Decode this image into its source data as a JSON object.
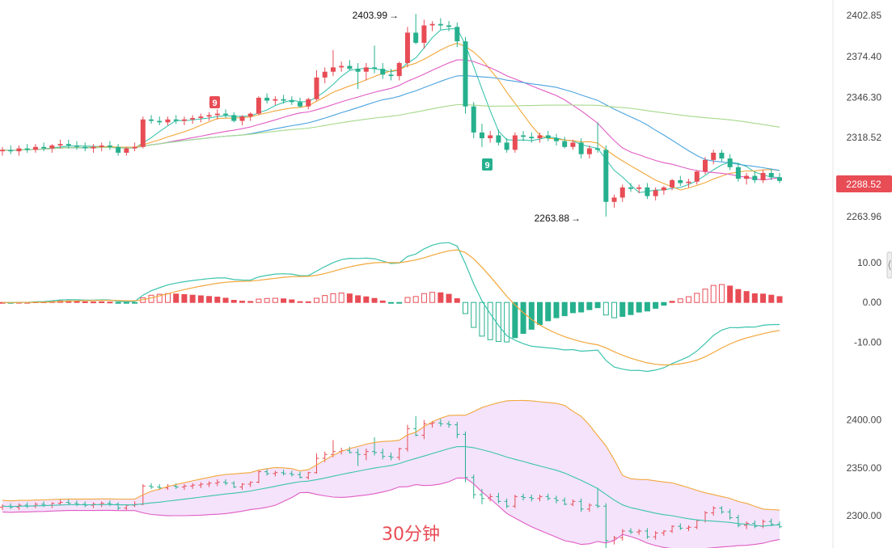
{
  "chart_data": [
    {
      "type": "candlestick",
      "panel": "price",
      "yticks": [
        "2402.85",
        "2374.40",
        "2346.30",
        "2318.52",
        "2263.96"
      ],
      "ytick_values": [
        2402.85,
        2374.4,
        2346.3,
        2318.52,
        2263.96
      ],
      "ylim": [
        2256,
        2408
      ],
      "current_price": "2288.52",
      "high_label": "2403.99",
      "low_label": "2263.88",
      "signal_badges": [
        "9",
        "9"
      ],
      "candles_ohlc": [
        [
          2309,
          2312,
          2306,
          2310
        ],
        [
          2310,
          2313,
          2307,
          2309
        ],
        [
          2309,
          2313,
          2306,
          2311
        ],
        [
          2311,
          2314,
          2308,
          2310
        ],
        [
          2310,
          2314,
          2308,
          2312
        ],
        [
          2312,
          2315,
          2309,
          2311
        ],
        [
          2311,
          2314,
          2308,
          2313
        ],
        [
          2313,
          2317,
          2311,
          2314
        ],
        [
          2314,
          2317,
          2311,
          2313
        ],
        [
          2313,
          2316,
          2310,
          2312
        ],
        [
          2312,
          2315,
          2309,
          2311
        ],
        [
          2311,
          2314,
          2308,
          2312
        ],
        [
          2312,
          2315,
          2309,
          2313
        ],
        [
          2313,
          2316,
          2310,
          2312
        ],
        [
          2312,
          2314,
          2306,
          2308
        ],
        [
          2308,
          2312,
          2306,
          2311
        ],
        [
          2311,
          2315,
          2309,
          2312
        ],
        [
          2312,
          2333,
          2311,
          2331
        ],
        [
          2331,
          2334,
          2328,
          2330
        ],
        [
          2330,
          2333,
          2327,
          2329
        ],
        [
          2329,
          2333,
          2327,
          2331
        ],
        [
          2331,
          2334,
          2328,
          2330
        ],
        [
          2330,
          2333,
          2327,
          2331
        ],
        [
          2331,
          2334,
          2328,
          2332
        ],
        [
          2332,
          2335,
          2329,
          2333
        ],
        [
          2333,
          2336,
          2330,
          2334
        ],
        [
          2334,
          2338,
          2331,
          2335
        ],
        [
          2335,
          2338,
          2332,
          2334
        ],
        [
          2334,
          2336,
          2329,
          2330
        ],
        [
          2330,
          2334,
          2327,
          2333
        ],
        [
          2333,
          2336,
          2330,
          2335
        ],
        [
          2335,
          2347,
          2334,
          2346
        ],
        [
          2346,
          2349,
          2342,
          2344
        ],
        [
          2344,
          2347,
          2341,
          2345
        ],
        [
          2345,
          2348,
          2342,
          2344
        ],
        [
          2344,
          2347,
          2341,
          2343
        ],
        [
          2343,
          2346,
          2339,
          2340
        ],
        [
          2340,
          2346,
          2338,
          2345
        ],
        [
          2345,
          2365,
          2344,
          2360
        ],
        [
          2360,
          2367,
          2356,
          2364
        ],
        [
          2364,
          2379,
          2361,
          2367
        ],
        [
          2367,
          2371,
          2364,
          2368
        ],
        [
          2368,
          2372,
          2365,
          2366
        ],
        [
          2366,
          2370,
          2352,
          2364
        ],
        [
          2364,
          2370,
          2358,
          2367
        ],
        [
          2367,
          2382,
          2363,
          2366
        ],
        [
          2366,
          2370,
          2359,
          2362
        ],
        [
          2362,
          2366,
          2358,
          2361
        ],
        [
          2361,
          2371,
          2358,
          2370
        ],
        [
          2370,
          2395,
          2367,
          2391
        ],
        [
          2391,
          2403.99,
          2383,
          2384
        ],
        [
          2384,
          2400,
          2380,
          2396
        ],
        [
          2396,
          2399,
          2392,
          2397
        ],
        [
          2397,
          2401,
          2393,
          2396
        ],
        [
          2396,
          2399,
          2392,
          2395
        ],
        [
          2395,
          2398,
          2381,
          2385
        ],
        [
          2385,
          2388,
          2335,
          2340
        ],
        [
          2340,
          2343,
          2318,
          2322
        ],
        [
          2322,
          2328,
          2312,
          2318
        ],
        [
          2318,
          2323,
          2315,
          2320
        ],
        [
          2320,
          2324,
          2313,
          2315
        ],
        [
          2315,
          2318,
          2308,
          2310
        ],
        [
          2310,
          2322,
          2308,
          2320
        ],
        [
          2320,
          2323,
          2316,
          2319
        ],
        [
          2319,
          2322,
          2315,
          2318
        ],
        [
          2318,
          2322,
          2315,
          2320
        ],
        [
          2320,
          2323,
          2316,
          2318
        ],
        [
          2318,
          2321,
          2313,
          2316
        ],
        [
          2316,
          2319,
          2311,
          2312
        ],
        [
          2312,
          2317,
          2310,
          2315
        ],
        [
          2315,
          2318,
          2304,
          2307
        ],
        [
          2307,
          2313,
          2304,
          2311
        ],
        [
          2311,
          2329,
          2308,
          2310
        ],
        [
          2310,
          2313,
          2263.88,
          2274
        ],
        [
          2274,
          2279,
          2270,
          2277
        ],
        [
          2277,
          2286,
          2274,
          2284
        ],
        [
          2284,
          2287,
          2281,
          2283
        ],
        [
          2283,
          2286,
          2280,
          2284
        ],
        [
          2284,
          2287,
          2276,
          2278
        ],
        [
          2278,
          2284,
          2275,
          2282
        ],
        [
          2282,
          2285,
          2279,
          2284
        ],
        [
          2284,
          2290,
          2282,
          2289
        ],
        [
          2289,
          2292,
          2285,
          2287
        ],
        [
          2287,
          2290,
          2284,
          2288
        ],
        [
          2288,
          2296,
          2286,
          2295
        ],
        [
          2295,
          2305,
          2293,
          2303
        ],
        [
          2303,
          2310,
          2300,
          2308
        ],
        [
          2308,
          2310,
          2302,
          2304
        ],
        [
          2304,
          2307,
          2296,
          2298
        ],
        [
          2298,
          2301,
          2288,
          2290
        ],
        [
          2290,
          2294,
          2286,
          2292
        ],
        [
          2292,
          2295,
          2287,
          2289
        ],
        [
          2289,
          2296,
          2287,
          2294
        ],
        [
          2294,
          2297,
          2289,
          2291
        ],
        [
          2291,
          2294,
          2287,
          2288.52
        ]
      ],
      "ma_colors": [
        "#3cc4ad",
        "#f2a73b",
        "#e05cc4",
        "#4aa3df",
        "#a6d98c"
      ]
    },
    {
      "type": "macd",
      "panel": "macd",
      "yticks": [
        "10.00",
        "0.00",
        "-10.00"
      ],
      "ytick_values": [
        10,
        0,
        -10
      ],
      "ylim": [
        -21,
        14
      ]
    },
    {
      "type": "bollinger",
      "panel": "bollinger",
      "yticks": [
        "2400.00",
        "2350.00",
        "2300.00"
      ],
      "ytick_values": [
        2400,
        2350,
        2300
      ],
      "ylim": [
        2268,
        2425
      ]
    }
  ],
  "caption": "30分钟",
  "colors": {
    "up": "#e84c55",
    "down": "#26b08d",
    "dif": "#3cc4ad",
    "dea": "#f2a73b",
    "boll_upper": "#f2a73b",
    "boll_mid": "#3cc4ad",
    "boll_lower": "#e05cc4",
    "boll_fill": "#f4e3fb",
    "caption": "#e84c55",
    "price_tag": "#e84c55",
    "badge_up": "#e84c55",
    "badge_down": "#26b08d"
  }
}
